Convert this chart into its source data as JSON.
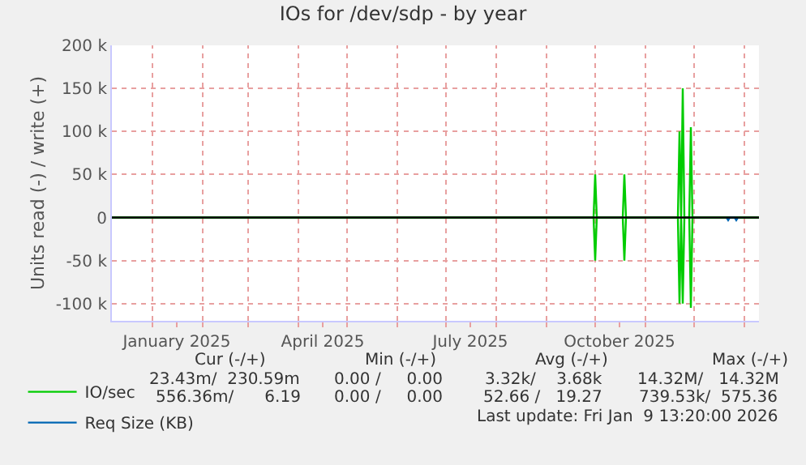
{
  "chart_data": {
    "type": "line",
    "title": "IOs for /dev/sdp - by year",
    "ylabel": "Units read (-) / write (+)",
    "series": [
      {
        "name": "IO/sec",
        "color": "#00cc00",
        "x": [
          "2024-12-07",
          "2025-09-30",
          "2025-10-01",
          "2025-10-02",
          "2025-10-18",
          "2025-10-19",
          "2025-10-20",
          "2025-11-21",
          "2025-11-22",
          "2025-11-23",
          "2025-11-24",
          "2025-11-25",
          "2025-11-28",
          "2025-11-29",
          "2025-11-30",
          "2026-01-10"
        ],
        "values": [
          0,
          0,
          50000,
          0,
          0,
          50000,
          0,
          0,
          100000,
          0,
          150000,
          0,
          0,
          105000,
          0,
          0
        ]
      },
      {
        "color": "#00cc00",
        "x": [
          "2024-12-07",
          "2025-09-30",
          "2025-10-01",
          "2025-10-02",
          "2025-10-18",
          "2025-10-19",
          "2025-10-20",
          "2025-11-21",
          "2025-11-22",
          "2025-11-23",
          "2025-11-24",
          "2025-11-25",
          "2025-11-28",
          "2025-11-29",
          "2025-11-30",
          "2026-01-10"
        ],
        "values": [
          0,
          0,
          -50000,
          0,
          0,
          -50000,
          0,
          0,
          -100000,
          0,
          -100000,
          0,
          0,
          -105000,
          0,
          0
        ]
      },
      {
        "name": "Req Size (KB)",
        "color": "#0066b3",
        "x": [
          "2025-12-21",
          "2025-12-22",
          "2025-12-23",
          "2025-12-26",
          "2025-12-27",
          "2025-12-28"
        ],
        "values": [
          0,
          -3000,
          0,
          0,
          -3000,
          0
        ]
      }
    ],
    "xlim": [
      "2024-12-07",
      "2026-01-10"
    ],
    "xticks": [
      {
        "value": "2025-01-01",
        "label": null
      },
      {
        "value": "2025-01-16",
        "label": "January 2025"
      },
      {
        "value": "2025-02-01",
        "label": null
      },
      {
        "value": "2025-03-01",
        "label": null
      },
      {
        "value": "2025-04-01",
        "label": null
      },
      {
        "value": "2025-04-16",
        "label": "April 2025"
      },
      {
        "value": "2025-05-01",
        "label": null
      },
      {
        "value": "2025-06-01",
        "label": null
      },
      {
        "value": "2025-07-01",
        "label": null
      },
      {
        "value": "2025-07-16",
        "label": "July 2025"
      },
      {
        "value": "2025-08-01",
        "label": null
      },
      {
        "value": "2025-09-01",
        "label": null
      },
      {
        "value": "2025-10-01",
        "label": null
      },
      {
        "value": "2025-10-16",
        "label": "October 2025"
      },
      {
        "value": "2025-11-01",
        "label": null
      },
      {
        "value": "2025-12-01",
        "label": null
      },
      {
        "value": "2026-01-01",
        "label": null
      }
    ],
    "ylim": [
      -120000,
      200000
    ],
    "yticks": [
      {
        "value": -100000,
        "label": "-100 k"
      },
      {
        "value": -50000,
        "label": "-50 k"
      },
      0,
      {
        "value": 50000,
        "label": "50 k"
      },
      {
        "value": 100000,
        "label": "100 k"
      },
      {
        "value": 150000,
        "label": "150 k"
      },
      {
        "value": 200000,
        "label": "200 k"
      }
    ],
    "ref_lines": [
      {
        "axis": "y",
        "value": 0,
        "color": "#000000"
      }
    ],
    "grid": true,
    "legend": "bottom left",
    "annotations": [
      "Cur (-/+)",
      "Min (-/+)",
      "Avg (-/+)",
      "Max (-/+)",
      "23.43m/  230.59m",
      "0.00 /     0.00",
      "3.32k/    3.68k",
      "14.32M/   14.32M",
      "556.36m/      6.19",
      "0.00 /     0.00",
      "52.66 /   19.27",
      "739.53k/  575.36",
      "Last update: Fri Jan  9 13:20:00 2026"
    ]
  }
}
